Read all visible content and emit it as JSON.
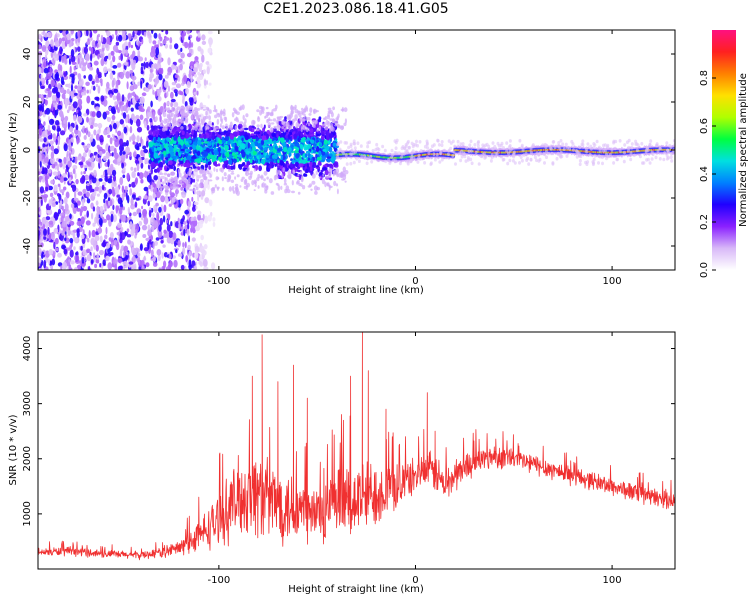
{
  "title": "C2E1.2023.086.18.41.G05",
  "colors": {
    "snr_line": "#f03030",
    "spectrogram_low": "#d8b8f8",
    "spectrogram_mid": "#7a10e0",
    "spectrogram_peak": "#ff2060"
  },
  "chart_data": [
    {
      "type": "heatmap",
      "xlabel": "Height of straight line (km)",
      "ylabel": "Frequency (Hz)",
      "xlim": [
        -192,
        132
      ],
      "ylim": [
        -50,
        50
      ],
      "xticks": [
        -100,
        0,
        100
      ],
      "yticks": [
        -40,
        -20,
        0,
        20,
        40
      ],
      "colorbar": {
        "label": "Normalized spectral amplitude",
        "range": [
          0,
          1
        ],
        "ticks": [
          0.0,
          0.2,
          0.4,
          0.6,
          0.8
        ],
        "colormap": [
          "#ffffff",
          "#d8b8f8",
          "#8a20ff",
          "#2000ff",
          "#0080ff",
          "#00e0e0",
          "#00ff40",
          "#b0ff00",
          "#ffe000",
          "#ff8000",
          "#ff2020",
          "#ff1080"
        ]
      },
      "regions": [
        {
          "description_x": [
            -192,
            -115
          ],
          "freq_range": [
            -50,
            50
          ],
          "amplitude": 0.1
        },
        {
          "description_x": [
            -135,
            -40
          ],
          "freq_range": [
            -8,
            10
          ],
          "amplitude": 0.45
        },
        {
          "description_x": [
            -40,
            132
          ],
          "freq_center": [
            -3,
            0
          ],
          "amplitude": 0.9
        }
      ]
    },
    {
      "type": "line",
      "xlabel": "Height of straight line (km)",
      "ylabel": "SNR (10 * v/v)",
      "xlim": [
        -192,
        132
      ],
      "ylim": [
        0,
        4300
      ],
      "xticks": [
        -100,
        0,
        100
      ],
      "yticks": [
        1000,
        2000,
        3000,
        4000
      ],
      "series": [
        {
          "x": [
            -192,
            -180,
            -170,
            -160,
            -150,
            -140,
            -130,
            -120,
            -110,
            -100,
            -95,
            -90,
            -85,
            -80,
            -75,
            -70,
            -65,
            -60,
            -55,
            -50,
            -45,
            -40,
            -35,
            -30,
            -25,
            -20,
            -15,
            -10,
            -5,
            0,
            5,
            10,
            15,
            20,
            25,
            30,
            40,
            50,
            60,
            70,
            80,
            90,
            100,
            110,
            120,
            132
          ],
          "values": [
            300,
            320,
            310,
            280,
            260,
            250,
            300,
            380,
            600,
            900,
            1100,
            1300,
            1350,
            1400,
            1250,
            1200,
            1150,
            1100,
            1000,
            1000,
            1050,
            1150,
            1200,
            1250,
            1300,
            1400,
            1450,
            1500,
            1600,
            1700,
            1800,
            1750,
            1500,
            1700,
            1850,
            1950,
            2050,
            2000,
            1900,
            1800,
            1700,
            1600,
            1500,
            1400,
            1300,
            1250
          ],
          "noise": [
            60,
            70,
            70,
            60,
            60,
            60,
            80,
            120,
            250,
            400,
            500,
            600,
            650,
            700,
            600,
            600,
            580,
            560,
            500,
            500,
            520,
            550,
            560,
            580,
            560,
            520,
            450,
            380,
            320,
            260,
            280,
            300,
            300,
            260,
            220,
            200,
            180,
            170,
            160,
            150,
            150,
            140,
            140,
            140,
            140,
            140
          ]
        }
      ],
      "spikes": [
        {
          "x": -83,
          "y": 3500
        },
        {
          "x": -78,
          "y": 4250
        },
        {
          "x": -70,
          "y": 3400
        },
        {
          "x": -62,
          "y": 3700
        },
        {
          "x": -55,
          "y": 3100
        },
        {
          "x": -33,
          "y": 3500
        },
        {
          "x": -27,
          "y": 4300
        },
        {
          "x": -24,
          "y": 3600
        },
        {
          "x": -15,
          "y": 2900
        },
        {
          "x": 6,
          "y": 3200
        },
        {
          "x": 10,
          "y": 2500
        }
      ]
    }
  ]
}
